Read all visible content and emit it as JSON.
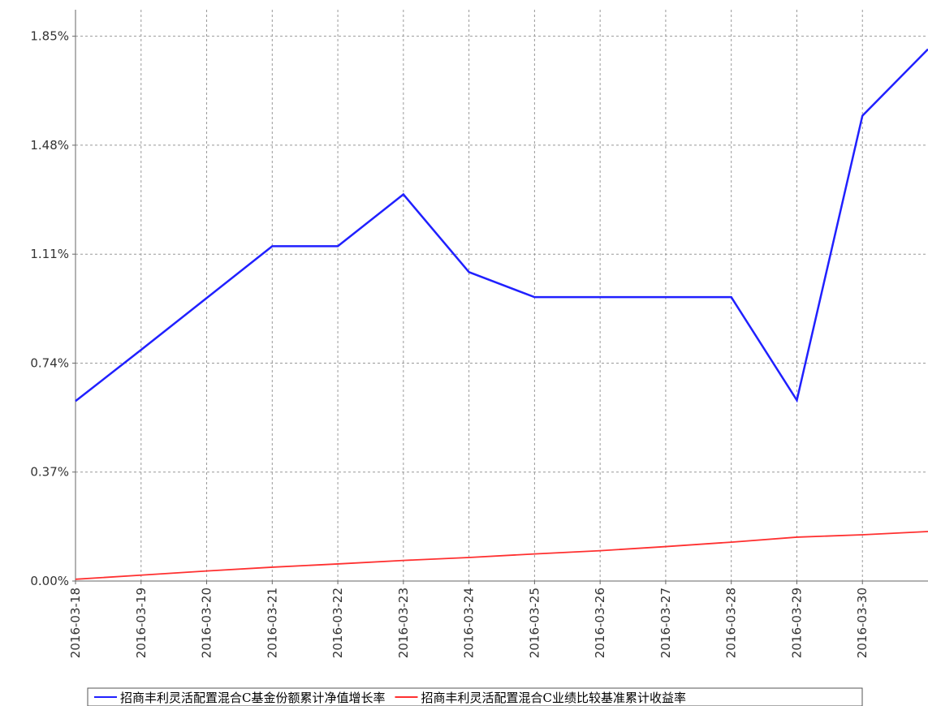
{
  "chart_data": {
    "type": "line",
    "categories": [
      "2016-03-18",
      "2016-03-19",
      "2016-03-20",
      "2016-03-21",
      "2016-03-22",
      "2016-03-23",
      "2016-03-24",
      "2016-03-25",
      "2016-03-26",
      "2016-03-27",
      "2016-03-28",
      "2016-03-29",
      "2016-03-30",
      null
    ],
    "series": [
      {
        "name": "招商丰利灵活配置混合C基金份额累计净值增长率",
        "color": "#2020ff",
        "values": [
          0.611,
          0.785,
          0.961,
          1.137,
          1.137,
          1.313,
          1.049,
          0.964,
          0.964,
          0.964,
          0.964,
          0.614,
          1.58,
          1.806
        ]
      },
      {
        "name": "招商丰利灵活配置混合C业绩比较基准累计收益率",
        "color": "#ff3030",
        "values": [
          0.006,
          0.02,
          0.034,
          0.047,
          0.058,
          0.07,
          0.08,
          0.092,
          0.103,
          0.117,
          0.132,
          0.149,
          0.157,
          0.168
        ]
      }
    ],
    "ylim": [
      0,
      1.94
    ],
    "yticks": [
      {
        "value": 0,
        "label": "0.00%"
      },
      {
        "value": 0.37,
        "label": "0.37%"
      },
      {
        "value": 0.74,
        "label": "0.74%"
      },
      {
        "value": 1.11,
        "label": "1.11%"
      },
      {
        "value": 1.48,
        "label": "1.48%"
      },
      {
        "value": 1.85,
        "label": "1.85%"
      }
    ],
    "grid": true
  }
}
